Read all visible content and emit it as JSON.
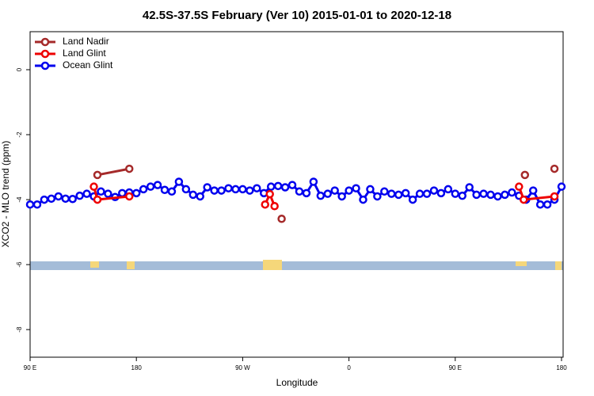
{
  "chart_data": {
    "type": "line",
    "title": "42.5S-37.5S February (Ver 10)   2015-01-01 to 2020-12-18",
    "x_label": "Longitude",
    "y_label": "XCO2 - MLO trend (ppm)",
    "xlim": [
      90,
      540
    ],
    "xticks": [
      {
        "value": 90,
        "label": "90 E"
      },
      180,
      {
        "value": 270,
        "label": "90 W"
      },
      {
        "value": 360,
        "label": "0"
      },
      {
        "value": 450,
        "label": "90 E"
      },
      {
        "value": 540,
        "label": "180"
      }
    ],
    "ylim": [
      -8.85,
      1.17
    ],
    "yticks": [
      0,
      -2,
      -4,
      -6,
      -8
    ],
    "legend": "top-left",
    "series": [
      {
        "name": "Ocean Glint",
        "color": "#0000ee",
        "x": [
          90,
          96,
          102,
          108,
          114,
          120,
          126,
          132,
          138,
          144,
          150,
          156,
          162,
          168,
          174,
          180,
          186,
          192,
          198,
          204,
          210,
          216,
          222,
          228,
          234,
          240,
          246,
          252,
          258,
          264,
          270,
          276,
          282,
          288,
          294,
          300,
          306,
          312,
          318,
          324,
          330,
          336,
          342,
          348,
          354,
          360,
          366,
          372,
          378,
          384,
          390,
          396,
          402,
          408,
          414,
          420,
          426,
          432,
          438,
          444,
          450,
          456,
          462,
          468,
          474,
          480,
          486,
          492,
          498,
          504,
          510,
          516,
          522,
          528,
          534,
          540
        ],
        "values": [
          -4.15,
          -4.15,
          -4.0,
          -3.97,
          -3.9,
          -3.97,
          -3.98,
          -3.88,
          -3.82,
          -3.9,
          -3.75,
          -3.82,
          -3.92,
          -3.8,
          -3.78,
          -3.8,
          -3.68,
          -3.6,
          -3.55,
          -3.7,
          -3.75,
          -3.45,
          -3.68,
          -3.85,
          -3.9,
          -3.62,
          -3.72,
          -3.72,
          -3.65,
          -3.68,
          -3.68,
          -3.72,
          -3.65,
          -3.8,
          -3.6,
          -3.58,
          -3.62,
          -3.55,
          -3.75,
          -3.8,
          -3.45,
          -3.88,
          -3.82,
          -3.72,
          -3.9,
          -3.72,
          -3.65,
          -4.0,
          -3.68,
          -3.9,
          -3.75,
          -3.82,
          -3.85,
          -3.8,
          -4.0,
          -3.82,
          -3.82,
          -3.72,
          -3.8,
          -3.68,
          -3.82,
          -3.88,
          -3.62,
          -3.85,
          -3.82,
          -3.85,
          -3.9,
          -3.85,
          -3.78,
          -3.88,
          -4.0,
          -3.72,
          -4.15,
          -4.15,
          -4.0,
          -3.6
        ]
      },
      {
        "name": "Land Nadir",
        "color": "#a52a2a",
        "x": [
          147,
          174,
          null,
          303,
          null,
          509,
          null,
          534
        ],
        "values": [
          -3.24,
          -3.05,
          null,
          -4.59,
          null,
          -3.24,
          null,
          -3.05
        ]
      },
      {
        "name": "Land Glint",
        "color": "#ee0000",
        "x": [
          144,
          147,
          174,
          null,
          289,
          293,
          297,
          null,
          504,
          508,
          534
        ],
        "values": [
          -3.6,
          -4.0,
          -3.9,
          null,
          -4.15,
          -3.83,
          -4.2,
          null,
          -3.6,
          -4.0,
          -3.9
        ]
      }
    ]
  }
}
